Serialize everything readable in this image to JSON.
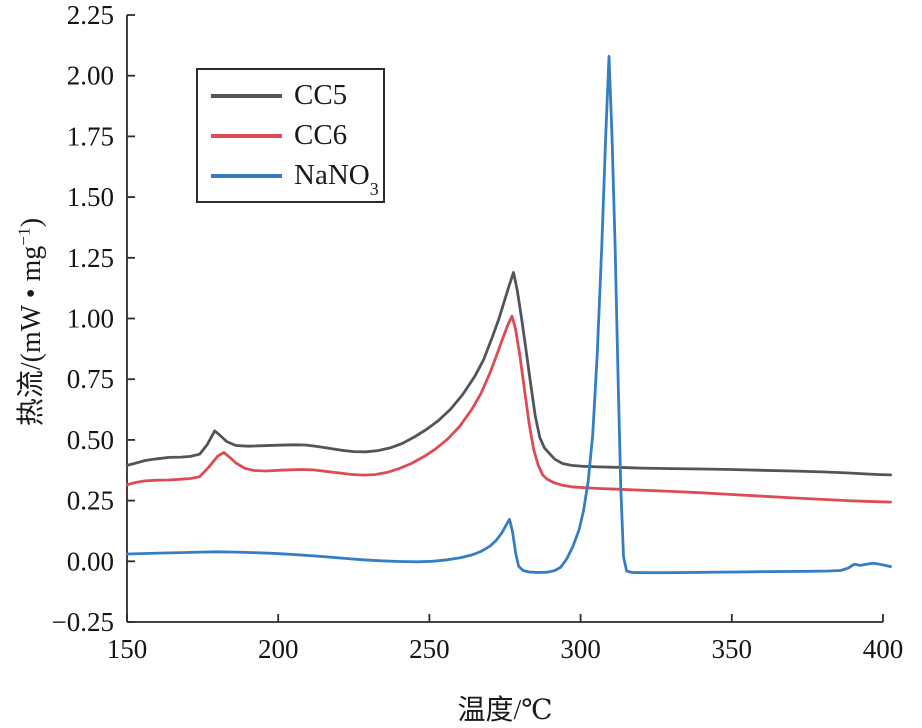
{
  "chart_data": {
    "type": "line",
    "title": "",
    "xlabel": "温度/℃",
    "ylabel_prefix": "热流/(mW • mg",
    "ylabel_sup": "−1",
    "ylabel_suffix": ")",
    "xlim": [
      150,
      400
    ],
    "ylim": [
      -0.25,
      2.25
    ],
    "grid": false,
    "legend_position": "upper-left",
    "axis_color": "#2c2c2c",
    "x_ticks": [
      150,
      200,
      250,
      300,
      350,
      400
    ],
    "x_tick_labels": [
      "150",
      "200",
      "250",
      "300",
      "350",
      "400"
    ],
    "y_ticks": [
      -0.25,
      0.0,
      0.25,
      0.5,
      0.75,
      1.0,
      1.25,
      1.5,
      1.75,
      2.0,
      2.25
    ],
    "y_tick_labels": [
      "−0.25",
      "0.00",
      "0.25",
      "0.50",
      "0.75",
      "1.00",
      "1.25",
      "1.50",
      "1.75",
      "2.00",
      "2.25"
    ],
    "series": [
      {
        "name": "CC5",
        "label": "CC5",
        "label_sub": "",
        "color": "#50565c",
        "points": [
          [
            150,
            0.395
          ],
          [
            153,
            0.405
          ],
          [
            156,
            0.415
          ],
          [
            160,
            0.422
          ],
          [
            164,
            0.428
          ],
          [
            168,
            0.429
          ],
          [
            171,
            0.432
          ],
          [
            174,
            0.441
          ],
          [
            176.5,
            0.48
          ],
          [
            179,
            0.537
          ],
          [
            180.5,
            0.522
          ],
          [
            183,
            0.493
          ],
          [
            186,
            0.477
          ],
          [
            190,
            0.474
          ],
          [
            195,
            0.476
          ],
          [
            200,
            0.478
          ],
          [
            205,
            0.48
          ],
          [
            209,
            0.479
          ],
          [
            213,
            0.473
          ],
          [
            217,
            0.465
          ],
          [
            221,
            0.457
          ],
          [
            225,
            0.452
          ],
          [
            229,
            0.451
          ],
          [
            233,
            0.456
          ],
          [
            237,
            0.467
          ],
          [
            241,
            0.485
          ],
          [
            245,
            0.512
          ],
          [
            249,
            0.543
          ],
          [
            253,
            0.58
          ],
          [
            257,
            0.627
          ],
          [
            261,
            0.687
          ],
          [
            265,
            0.762
          ],
          [
            268,
            0.832
          ],
          [
            271,
            0.93
          ],
          [
            273,
            1.0
          ],
          [
            275,
            1.08
          ],
          [
            276.5,
            1.14
          ],
          [
            277.8,
            1.19
          ],
          [
            279,
            1.12
          ],
          [
            280.5,
            1.0
          ],
          [
            282,
            0.865
          ],
          [
            283.5,
            0.73
          ],
          [
            285,
            0.6
          ],
          [
            286.5,
            0.51
          ],
          [
            288,
            0.468
          ],
          [
            289.5,
            0.447
          ],
          [
            291.5,
            0.42
          ],
          [
            294,
            0.403
          ],
          [
            297,
            0.395
          ],
          [
            301,
            0.391
          ],
          [
            306,
            0.389
          ],
          [
            312,
            0.387
          ],
          [
            320,
            0.384
          ],
          [
            330,
            0.382
          ],
          [
            340,
            0.38
          ],
          [
            350,
            0.378
          ],
          [
            360,
            0.375
          ],
          [
            370,
            0.372
          ],
          [
            380,
            0.368
          ],
          [
            388,
            0.364
          ],
          [
            394,
            0.36
          ],
          [
            399,
            0.357
          ],
          [
            402.5,
            0.356
          ]
        ]
      },
      {
        "name": "CC6",
        "label": "CC6",
        "label_sub": "",
        "color": "#dd4b54",
        "points": [
          [
            150,
            0.315
          ],
          [
            153,
            0.325
          ],
          [
            156,
            0.331
          ],
          [
            160,
            0.334
          ],
          [
            164,
            0.335
          ],
          [
            168,
            0.338
          ],
          [
            171,
            0.341
          ],
          [
            174,
            0.348
          ],
          [
            177,
            0.387
          ],
          [
            180,
            0.433
          ],
          [
            182,
            0.448
          ],
          [
            184,
            0.428
          ],
          [
            186,
            0.405
          ],
          [
            189,
            0.383
          ],
          [
            192,
            0.374
          ],
          [
            196,
            0.372
          ],
          [
            200,
            0.375
          ],
          [
            204,
            0.377
          ],
          [
            208,
            0.378
          ],
          [
            212,
            0.376
          ],
          [
            216,
            0.37
          ],
          [
            220,
            0.364
          ],
          [
            224,
            0.358
          ],
          [
            228,
            0.355
          ],
          [
            232,
            0.357
          ],
          [
            236,
            0.366
          ],
          [
            240,
            0.382
          ],
          [
            244,
            0.403
          ],
          [
            248,
            0.43
          ],
          [
            252,
            0.462
          ],
          [
            256,
            0.503
          ],
          [
            260,
            0.555
          ],
          [
            264,
            0.625
          ],
          [
            267,
            0.69
          ],
          [
            270,
            0.775
          ],
          [
            272,
            0.84
          ],
          [
            274,
            0.91
          ],
          [
            276,
            0.975
          ],
          [
            277.3,
            1.01
          ],
          [
            278.5,
            0.955
          ],
          [
            280,
            0.84
          ],
          [
            281.5,
            0.7
          ],
          [
            283,
            0.565
          ],
          [
            284.5,
            0.46
          ],
          [
            286,
            0.395
          ],
          [
            287.5,
            0.355
          ],
          [
            289,
            0.338
          ],
          [
            291,
            0.325
          ],
          [
            294,
            0.313
          ],
          [
            297,
            0.307
          ],
          [
            301,
            0.303
          ],
          [
            306,
            0.3
          ],
          [
            312,
            0.297
          ],
          [
            320,
            0.293
          ],
          [
            330,
            0.288
          ],
          [
            340,
            0.282
          ],
          [
            350,
            0.275
          ],
          [
            360,
            0.268
          ],
          [
            370,
            0.261
          ],
          [
            380,
            0.255
          ],
          [
            388,
            0.25
          ],
          [
            394,
            0.247
          ],
          [
            399,
            0.245
          ],
          [
            402.5,
            0.244
          ]
        ]
      },
      {
        "name": "NaNO3",
        "label": "NaNO",
        "label_sub": "3",
        "color": "#357ec4",
        "points": [
          [
            150,
            0.03
          ],
          [
            156,
            0.032
          ],
          [
            162,
            0.034
          ],
          [
            168,
            0.036
          ],
          [
            174,
            0.038
          ],
          [
            180,
            0.039
          ],
          [
            186,
            0.038
          ],
          [
            192,
            0.036
          ],
          [
            198,
            0.033
          ],
          [
            204,
            0.029
          ],
          [
            210,
            0.024
          ],
          [
            216,
            0.018
          ],
          [
            222,
            0.012
          ],
          [
            228,
            0.006
          ],
          [
            234,
            0.002
          ],
          [
            240,
            -0.001
          ],
          [
            246,
            -0.002
          ],
          [
            251,
            0.0
          ],
          [
            256,
            0.006
          ],
          [
            260,
            0.014
          ],
          [
            264,
            0.026
          ],
          [
            267,
            0.04
          ],
          [
            270,
            0.062
          ],
          [
            272,
            0.085
          ],
          [
            274,
            0.118
          ],
          [
            275.5,
            0.152
          ],
          [
            276.5,
            0.173
          ],
          [
            277.5,
            0.12
          ],
          [
            278.5,
            0.035
          ],
          [
            279.5,
            -0.02
          ],
          [
            281,
            -0.038
          ],
          [
            283,
            -0.044
          ],
          [
            286,
            -0.046
          ],
          [
            289,
            -0.045
          ],
          [
            291.5,
            -0.038
          ],
          [
            293.5,
            -0.024
          ],
          [
            295.5,
            0.012
          ],
          [
            297.5,
            0.062
          ],
          [
            299.5,
            0.13
          ],
          [
            301,
            0.21
          ],
          [
            302.5,
            0.33
          ],
          [
            304,
            0.52
          ],
          [
            305.5,
            0.85
          ],
          [
            307,
            1.3
          ],
          [
            308.3,
            1.75
          ],
          [
            309.4,
            2.08
          ],
          [
            310.4,
            1.75
          ],
          [
            311.4,
            1.3
          ],
          [
            312.4,
            0.75
          ],
          [
            313.3,
            0.3
          ],
          [
            314.2,
            0.02
          ],
          [
            315.2,
            -0.04
          ],
          [
            317,
            -0.046
          ],
          [
            322,
            -0.047
          ],
          [
            328,
            -0.047
          ],
          [
            336,
            -0.046
          ],
          [
            344,
            -0.045
          ],
          [
            352,
            -0.044
          ],
          [
            360,
            -0.043
          ],
          [
            368,
            -0.042
          ],
          [
            376,
            -0.041
          ],
          [
            382,
            -0.04
          ],
          [
            386,
            -0.038
          ],
          [
            388.5,
            -0.028
          ],
          [
            390.5,
            -0.012
          ],
          [
            392.5,
            -0.017
          ],
          [
            394.5,
            -0.012
          ],
          [
            396.5,
            -0.008
          ],
          [
            398.5,
            -0.011
          ],
          [
            400.5,
            -0.016
          ],
          [
            402.5,
            -0.022
          ]
        ]
      }
    ]
  }
}
